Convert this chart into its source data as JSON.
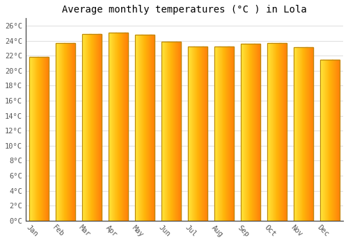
{
  "title": "Average monthly temperatures (°C ) in Lola",
  "months": [
    "Jan",
    "Feb",
    "Mar",
    "Apr",
    "May",
    "Jun",
    "Jul",
    "Aug",
    "Sep",
    "Oct",
    "Nov",
    "Dec"
  ],
  "values": [
    21.8,
    23.7,
    24.9,
    25.1,
    24.8,
    23.9,
    23.2,
    23.2,
    23.6,
    23.7,
    23.1,
    21.5
  ],
  "bar_color_center": "#FFA500",
  "bar_color_edge_left": "#FFD070",
  "bar_color_edge_right": "#FF9500",
  "bar_border_color": "#B8860B",
  "background_color": "#FFFFFF",
  "grid_color": "#DDDDDD",
  "ylim": [
    0,
    27
  ],
  "yticks": [
    0,
    2,
    4,
    6,
    8,
    10,
    12,
    14,
    16,
    18,
    20,
    22,
    24,
    26
  ],
  "ytick_labels": [
    "0°C",
    "2°C",
    "4°C",
    "6°C",
    "8°C",
    "10°C",
    "12°C",
    "14°C",
    "16°C",
    "18°C",
    "20°C",
    "22°C",
    "24°C",
    "26°C"
  ],
  "title_fontsize": 10,
  "tick_fontsize": 7.5,
  "xlabel_rotation": -45,
  "bar_width": 0.72
}
